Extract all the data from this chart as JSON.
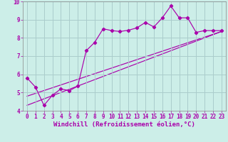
{
  "xlabel": "Windchill (Refroidissement éolien,°C)",
  "bg_color": "#cceee8",
  "grid_color": "#aacccc",
  "line_color": "#aa00aa",
  "xlim": [
    -0.5,
    23.5
  ],
  "ylim": [
    4,
    10
  ],
  "yticks": [
    4,
    5,
    6,
    7,
    8,
    9,
    10
  ],
  "xticks": [
    0,
    1,
    2,
    3,
    4,
    5,
    6,
    7,
    8,
    9,
    10,
    11,
    12,
    13,
    14,
    15,
    16,
    17,
    18,
    19,
    20,
    21,
    22,
    23
  ],
  "line1_x": [
    0,
    1,
    2,
    3,
    4,
    5,
    6,
    7,
    8,
    9,
    10,
    11,
    12,
    13,
    14,
    15,
    16,
    17,
    18,
    19,
    20,
    21,
    22,
    23
  ],
  "line1_y": [
    5.8,
    5.3,
    4.3,
    4.85,
    5.2,
    5.1,
    5.35,
    7.3,
    7.75,
    8.5,
    8.4,
    8.35,
    8.42,
    8.55,
    8.85,
    8.6,
    9.1,
    9.75,
    9.1,
    9.1,
    8.3,
    8.4,
    8.4,
    8.4
  ],
  "line2_x": [
    0,
    23
  ],
  "line2_y": [
    4.8,
    8.35
  ],
  "line3_x": [
    0,
    23
  ],
  "line3_y": [
    4.3,
    8.35
  ],
  "tick_fontsize": 5.5,
  "xlabel_fontsize": 6.5,
  "font_family": "monospace"
}
